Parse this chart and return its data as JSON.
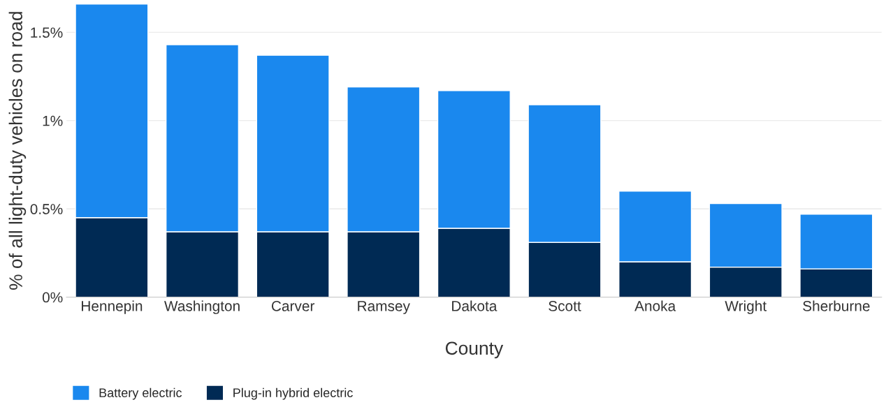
{
  "chart_data": {
    "type": "bar",
    "stacked": true,
    "xlabel": "County",
    "ylabel": "% of all light-duty vehicles on road",
    "categories": [
      "Hennepin",
      "Washington",
      "Carver",
      "Ramsey",
      "Dakota",
      "Scott",
      "Anoka",
      "Wright",
      "Sherburne"
    ],
    "series": [
      {
        "name": "Plug-in hybrid electric",
        "color": "#002a54",
        "values": [
          0.45,
          0.37,
          0.37,
          0.37,
          0.39,
          0.31,
          0.2,
          0.17,
          0.16
        ]
      },
      {
        "name": "Battery electric",
        "color": "#1a88ee",
        "values": [
          1.21,
          1.06,
          1.0,
          0.82,
          0.78,
          0.78,
          0.4,
          0.36,
          0.31
        ]
      }
    ],
    "ylim": [
      0,
      1.66
    ],
    "yticks": [
      {
        "value": 0,
        "label": "0%"
      },
      {
        "value": 0.5,
        "label": "0.5%"
      },
      {
        "value": 1,
        "label": "1%"
      },
      {
        "value": 1.5,
        "label": "1.5%"
      }
    ],
    "grid": "y",
    "legend": "bottom left"
  }
}
